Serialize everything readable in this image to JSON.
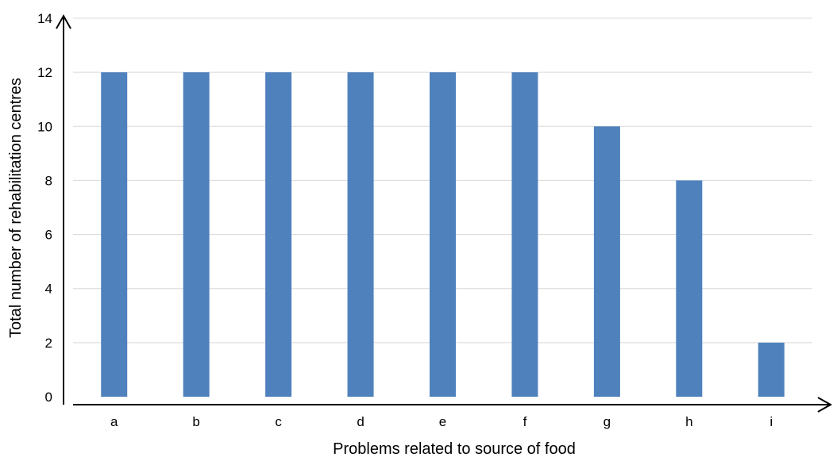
{
  "chart_data": {
    "type": "bar",
    "title": "",
    "xlabel": "Problems related to source of food",
    "ylabel": "Total number of rehabilitation centres",
    "categories": [
      "a",
      "b",
      "c",
      "d",
      "e",
      "f",
      "g",
      "h",
      "i"
    ],
    "values": [
      12,
      12,
      12,
      12,
      12,
      12,
      10,
      8,
      2
    ],
    "ylim": [
      0,
      14
    ],
    "yticks": [
      "0",
      "2",
      "4",
      "6",
      "8",
      "10",
      "12",
      "14"
    ],
    "grid": true,
    "legend": "none",
    "colors": {
      "bar": "#4f81bd",
      "grid": "#d9d9d9",
      "axis": "#000000"
    }
  }
}
